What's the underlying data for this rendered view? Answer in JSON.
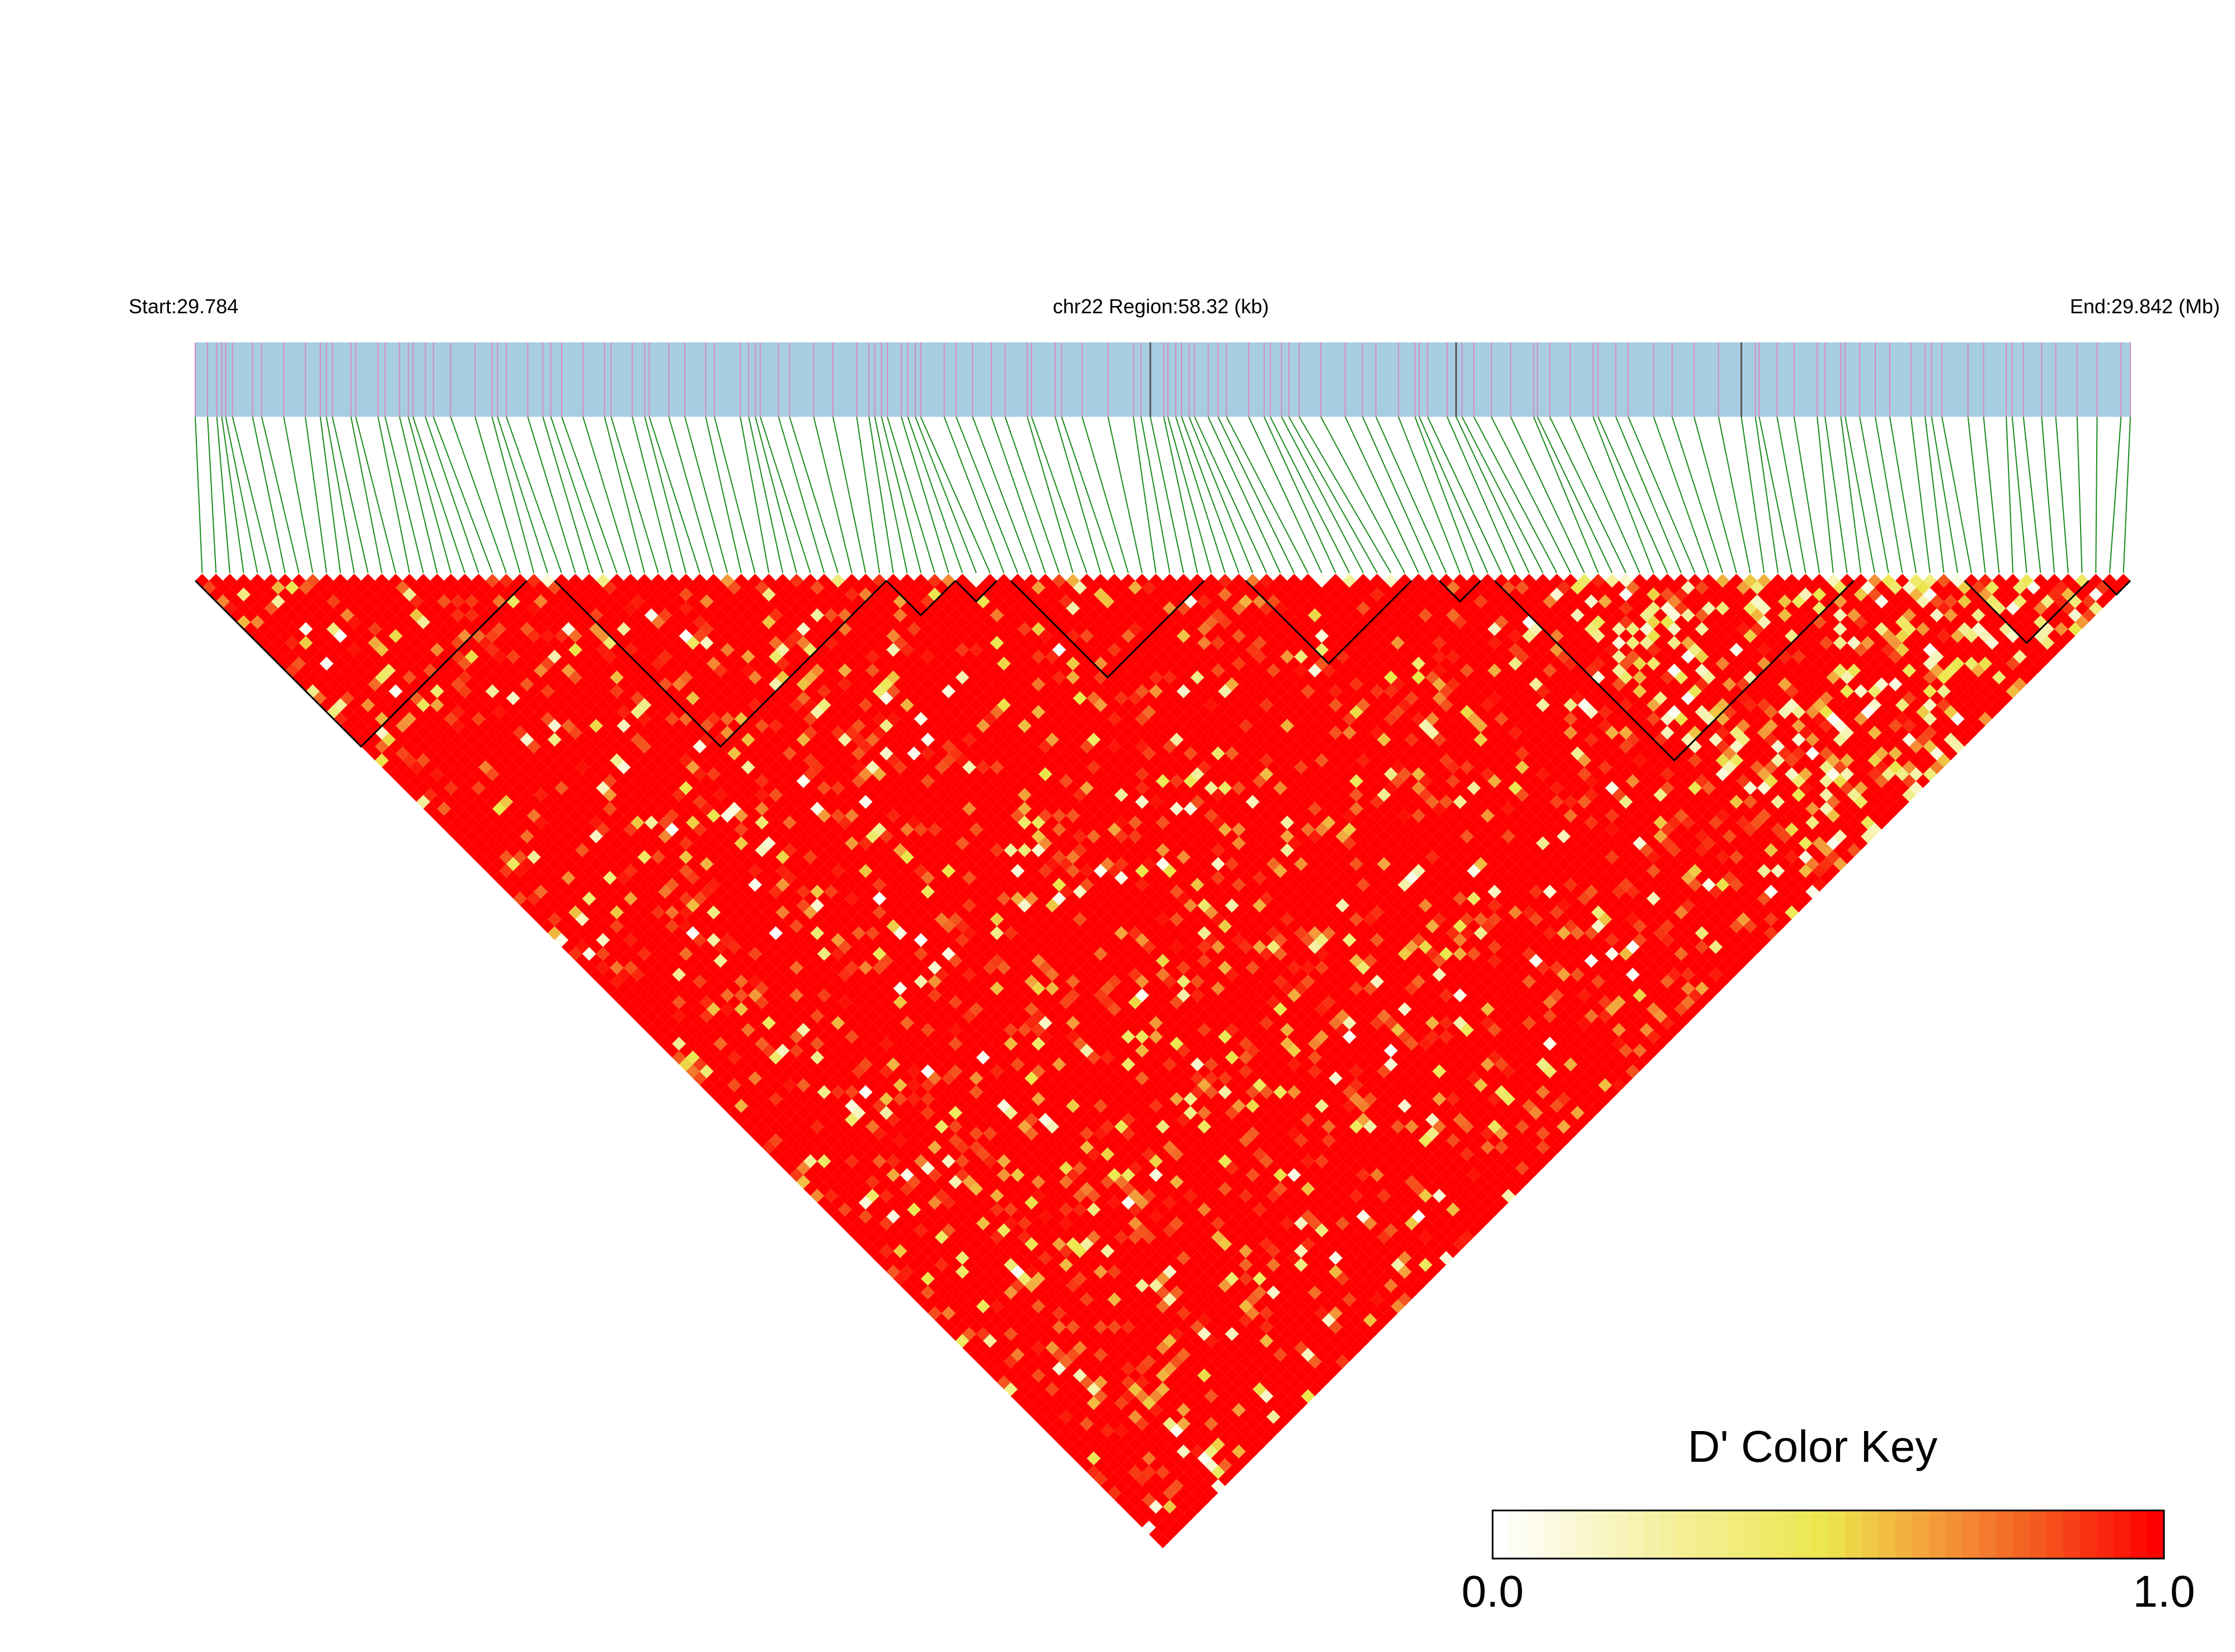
{
  "header": {
    "start_label": "Start:29.784",
    "region_label": "chr22 Region:58.32 (kb)",
    "end_label": "End:29.842 (Mb)"
  },
  "colors": {
    "track_background": "#a6cde2",
    "snp_tick": "#d98ac0",
    "snp_tick_dark": "#555555",
    "connector": "#1a8a1a",
    "ld_high": "#ff0000",
    "block_outline": "#000000"
  },
  "color_key": {
    "title": "D' Color Key",
    "min_label": "0.0",
    "max_label": "1.0",
    "min": 0.0,
    "max": 1.0,
    "stops": [
      "#ffffff",
      "#f5f0a0",
      "#ece64b",
      "#f4a23c",
      "#f45a20",
      "#ff0000"
    ]
  },
  "chart_data": {
    "type": "heatmap",
    "plot": "LD triangle heatmap (D')",
    "chromosome": "chr22",
    "start_mb": 29.784,
    "end_mb": 29.842,
    "region_kb": 58.32,
    "snp_count": 140,
    "value_range": [
      0.0,
      1.0
    ],
    "predominant_value": 1.0,
    "haplotype_blocks_snp_index_ranges": [
      [
        0,
        23
      ],
      [
        26,
        49
      ],
      [
        50,
        54
      ],
      [
        55,
        57
      ],
      [
        59,
        72
      ],
      [
        76,
        87
      ],
      [
        90,
        92
      ],
      [
        94,
        119
      ],
      [
        128,
        136
      ],
      [
        138,
        139
      ]
    ]
  }
}
